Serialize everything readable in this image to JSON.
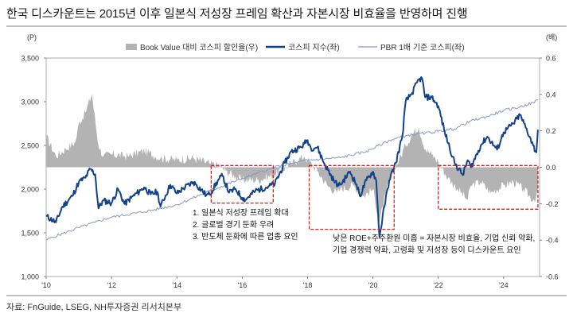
{
  "title": "한국 디스카운트는 2015년 이후 일본식 저성장 프레임 확산과 자본시장 비효율을 반영하며 진행",
  "source": "자료: FnGuide, LSEG, NH투자증권 리서치본부",
  "colors": {
    "discount": "#b3b3b3",
    "kospi": "#12438a",
    "pbr": "#8a96c4",
    "box": "#d62020"
  },
  "chart_data": {
    "type": "line",
    "left_axis": {
      "unit_label": "(P)",
      "ylim": [
        1000,
        3500
      ],
      "ticks": [
        "1,000",
        "1,500",
        "2,000",
        "2,500",
        "3,000",
        "3,500"
      ],
      "tick_values": [
        1000,
        1500,
        2000,
        2500,
        3000,
        3500
      ]
    },
    "right_axis": {
      "unit_label": "(배)",
      "ylim": [
        -0.6,
        0.6
      ],
      "ticks": [
        "-0.6",
        "-0.4",
        "-0.2",
        "0.0",
        "0.2",
        "0.4",
        "0.6"
      ],
      "tick_values": [
        -0.6,
        -0.4,
        -0.2,
        0.0,
        0.2,
        0.4,
        0.6
      ]
    },
    "x_axis": {
      "xlim": [
        2010,
        2025.1
      ],
      "ticks": [
        "'10",
        "'12",
        "'14",
        "'16",
        "'18",
        "'20",
        "'22",
        "'24"
      ],
      "tick_values": [
        2010,
        2012,
        2014,
        2016,
        2018,
        2020,
        2022,
        2024
      ]
    },
    "legend": [
      {
        "name": "Book Value 대비 코스피 할인율(우)",
        "kind": "area"
      },
      {
        "name": "코스피 지수(좌)",
        "kind": "line-thick"
      },
      {
        "name": "PBR 1배 기준 코스피(좌)",
        "kind": "line-thin"
      }
    ],
    "series": [
      {
        "name": "코스피 지수(좌)",
        "axis": "left",
        "x": [
          2010.0,
          2010.3,
          2010.5,
          2010.8,
          2011.0,
          2011.2,
          2011.35,
          2011.5,
          2011.6,
          2011.75,
          2012.0,
          2012.2,
          2012.4,
          2012.6,
          2012.9,
          2013.0,
          2013.2,
          2013.4,
          2013.5,
          2013.8,
          2014.0,
          2014.2,
          2014.5,
          2014.6,
          2014.9,
          2015.0,
          2015.3,
          2015.4,
          2015.6,
          2015.8,
          2016.0,
          2016.1,
          2016.4,
          2016.8,
          2017.0,
          2017.3,
          2017.5,
          2017.8,
          2017.9,
          2018.0,
          2018.1,
          2018.3,
          2018.5,
          2018.8,
          2018.95,
          2019.0,
          2019.3,
          2019.5,
          2019.6,
          2019.8,
          2020.0,
          2020.1,
          2020.2,
          2020.35,
          2020.5,
          2020.7,
          2020.9,
          2021.0,
          2021.2,
          2021.4,
          2021.5,
          2021.6,
          2021.8,
          2022.0,
          2022.2,
          2022.5,
          2022.75,
          2022.9,
          2023.0,
          2023.3,
          2023.5,
          2023.8,
          2024.0,
          2024.3,
          2024.5,
          2024.8,
          2024.9,
          2025.0,
          2025.05
        ],
        "values": [
          1690,
          1620,
          1800,
          1920,
          2080,
          2130,
          2230,
          2170,
          1780,
          1870,
          1840,
          2000,
          1830,
          1900,
          1990,
          2020,
          1940,
          1970,
          1800,
          2050,
          1950,
          2010,
          2080,
          2050,
          1930,
          1940,
          2120,
          2150,
          1960,
          2000,
          1900,
          1880,
          1980,
          2030,
          2060,
          2300,
          2430,
          2480,
          2520,
          2560,
          2470,
          2480,
          2300,
          2100,
          2040,
          2050,
          2200,
          2050,
          1920,
          2100,
          2200,
          2100,
          1450,
          1800,
          2100,
          2300,
          2600,
          3000,
          3100,
          3250,
          3270,
          3050,
          3050,
          2950,
          2650,
          2300,
          2160,
          2330,
          2250,
          2500,
          2600,
          2450,
          2650,
          2750,
          2850,
          2600,
          2500,
          2420,
          2680
        ]
      },
      {
        "name": "PBR 1배 기준 코스피(좌)",
        "axis": "left",
        "x": [
          2010.0,
          2011.0,
          2011.5,
          2012.0,
          2013.0,
          2014.0,
          2015.0,
          2016.0,
          2017.0,
          2018.0,
          2019.0,
          2019.8,
          2020.3,
          2020.6,
          2021.0,
          2021.3,
          2021.6,
          2022.0,
          2022.5,
          2023.0,
          2023.5,
          2024.0,
          2024.5,
          2024.9,
          2025.05
        ],
        "values": [
          1420,
          1560,
          1620,
          1680,
          1740,
          1820,
          1980,
          2120,
          2250,
          2330,
          2360,
          2430,
          2520,
          2570,
          2610,
          2630,
          2640,
          2660,
          2690,
          2780,
          2830,
          2900,
          2940,
          2990,
          3020
        ]
      },
      {
        "name": "Book Value 대비 코스피 할인율(우)",
        "axis": "right",
        "x": [
          2010.0,
          2010.3,
          2010.6,
          2010.9,
          2011.0,
          2011.2,
          2011.4,
          2011.6,
          2011.75,
          2012.0,
          2012.5,
          2013.0,
          2013.5,
          2014.0,
          2014.5,
          2015.0,
          2015.3,
          2015.5,
          2015.8,
          2016.0,
          2016.5,
          2017.0,
          2017.5,
          2017.9,
          2018.0,
          2018.3,
          2018.6,
          2018.9,
          2019.0,
          2019.4,
          2019.7,
          2020.0,
          2020.2,
          2020.4,
          2020.6,
          2020.8,
          2021.0,
          2021.2,
          2021.4,
          2021.6,
          2021.8,
          2022.0,
          2022.3,
          2022.6,
          2022.9,
          2023.0,
          2023.3,
          2023.6,
          2024.0,
          2024.3,
          2024.6,
          2024.9,
          2025.05
        ],
        "values": [
          0.17,
          0.06,
          0.1,
          0.14,
          0.24,
          0.3,
          0.4,
          0.12,
          0.06,
          0.07,
          0.06,
          0.09,
          0.05,
          0.04,
          0.05,
          0.02,
          0.01,
          -0.02,
          -0.05,
          -0.07,
          -0.07,
          -0.04,
          0.02,
          0.06,
          0.04,
          -0.02,
          -0.1,
          -0.14,
          -0.12,
          -0.1,
          -0.16,
          -0.12,
          -0.3,
          -0.14,
          -0.02,
          0.04,
          0.12,
          0.18,
          0.22,
          0.1,
          0.07,
          0.03,
          -0.06,
          -0.12,
          -0.18,
          -0.1,
          -0.08,
          -0.14,
          -0.1,
          -0.08,
          -0.12,
          -0.18,
          -0.15
        ]
      }
    ],
    "annotations": [
      {
        "id": "box1",
        "x_range": [
          2015.05,
          2016.95
        ],
        "y_range": [
          1840,
          2270
        ],
        "lines": [
          "1. 일본식 저성장 프레임 확대",
          "2. 글로벌 경기 둔화 우려",
          "3. 반도체 둔화에 따른 업종 요인"
        ]
      },
      {
        "id": "box2",
        "x_range": [
          2018.05,
          2020.65
        ],
        "y_range": [
          1540,
          2270
        ],
        "lines": []
      },
      {
        "id": "box3",
        "x_range": [
          2022.0,
          2025.05
        ],
        "y_range": [
          1770,
          2270
        ],
        "lines": [
          "낮은 ROE+주주환원 미흡 = 자본시장 비효율, 기업 신뢰 약화,",
          "기업 경쟁력 약화, 고령화 및 저성장 등이 디스카운트 요인"
        ]
      }
    ]
  }
}
